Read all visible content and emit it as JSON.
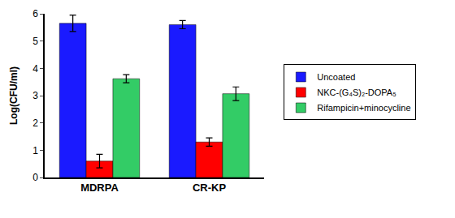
{
  "chart_data": {
    "type": "bar",
    "y_label": "Log(CFU/ml)",
    "categories": [
      "MDRPA",
      "CR-KP"
    ],
    "series": [
      {
        "name": "Uncoated",
        "color": "#1a1aff",
        "values": [
          5.65,
          5.6
        ],
        "errors": [
          0.3,
          0.15
        ]
      },
      {
        "name": "NKC-(G₄S)₂-DOPA₅",
        "color": "#ff0000",
        "values": [
          0.6,
          1.3
        ],
        "errors": [
          0.25,
          0.15
        ]
      },
      {
        "name": "Rifampicin+minocycline",
        "color": "#33cc66",
        "values": [
          3.62,
          3.07
        ],
        "errors": [
          0.15,
          0.25
        ]
      }
    ],
    "ylim": [
      0,
      6
    ],
    "yticks": [
      0,
      1,
      2,
      3,
      4,
      5,
      6
    ],
    "grid": false,
    "legend": "right"
  }
}
